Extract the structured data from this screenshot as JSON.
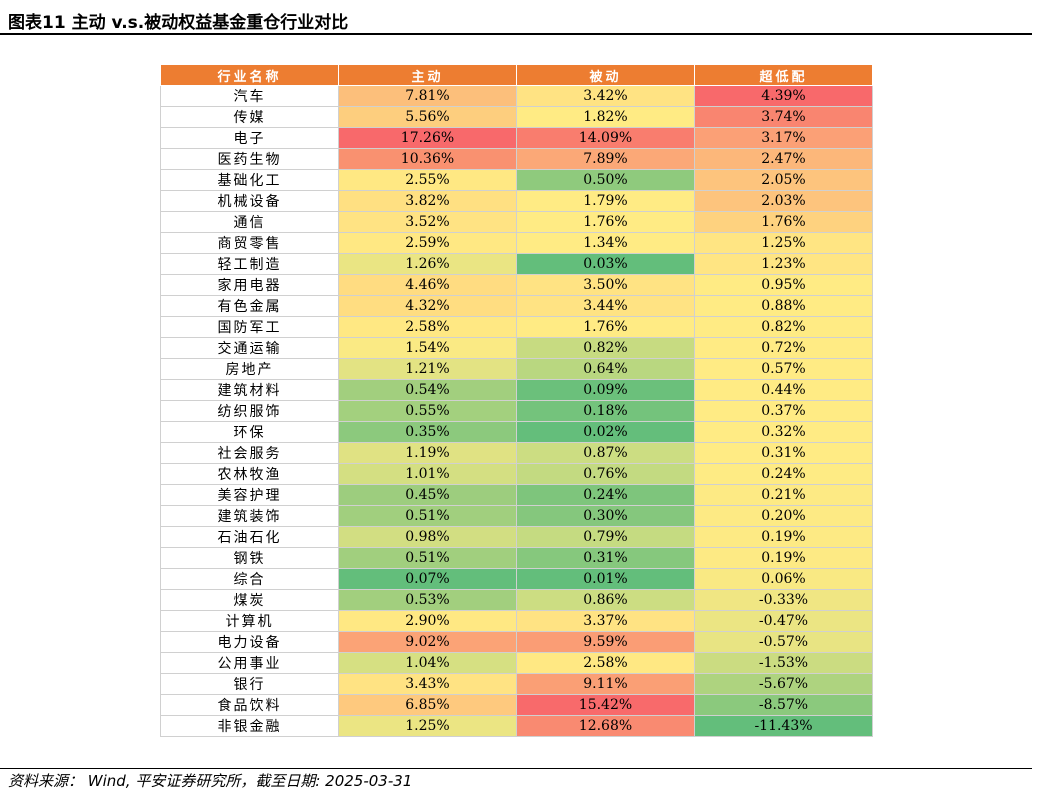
{
  "title": "图表11   主动 v.s.被动权益基金重仓行业对比",
  "headers": [
    "行业名称",
    "主动",
    "被动",
    "超低配"
  ],
  "rows": [
    [
      "汽车",
      "7.81%",
      "3.42%",
      "4.39%"
    ],
    [
      "传媒",
      "5.56%",
      "1.82%",
      "3.74%"
    ],
    [
      "电子",
      "17.26%",
      "14.09%",
      "3.17%"
    ],
    [
      "医药生物",
      "10.36%",
      "7.89%",
      "2.47%"
    ],
    [
      "基础化工",
      "2.55%",
      "0.50%",
      "2.05%"
    ],
    [
      "机械设备",
      "3.82%",
      "1.79%",
      "2.03%"
    ],
    [
      "通信",
      "3.52%",
      "1.76%",
      "1.76%"
    ],
    [
      "商贸零售",
      "2.59%",
      "1.34%",
      "1.25%"
    ],
    [
      "轻工制造",
      "1.26%",
      "0.03%",
      "1.23%"
    ],
    [
      "家用电器",
      "4.46%",
      "3.50%",
      "0.95%"
    ],
    [
      "有色金属",
      "4.32%",
      "3.44%",
      "0.88%"
    ],
    [
      "国防军工",
      "2.58%",
      "1.76%",
      "0.82%"
    ],
    [
      "交通运输",
      "1.54%",
      "0.82%",
      "0.72%"
    ],
    [
      "房地产",
      "1.21%",
      "0.64%",
      "0.57%"
    ],
    [
      "建筑材料",
      "0.54%",
      "0.09%",
      "0.44%"
    ],
    [
      "纺织服饰",
      "0.55%",
      "0.18%",
      "0.37%"
    ],
    [
      "环保",
      "0.35%",
      "0.02%",
      "0.32%"
    ],
    [
      "社会服务",
      "1.19%",
      "0.87%",
      "0.31%"
    ],
    [
      "农林牧渔",
      "1.01%",
      "0.76%",
      "0.24%"
    ],
    [
      "美容护理",
      "0.45%",
      "0.24%",
      "0.21%"
    ],
    [
      "建筑装饰",
      "0.51%",
      "0.30%",
      "0.20%"
    ],
    [
      "石油石化",
      "0.98%",
      "0.79%",
      "0.19%"
    ],
    [
      "钢铁",
      "0.51%",
      "0.31%",
      "0.19%"
    ],
    [
      "综合",
      "0.07%",
      "0.01%",
      "0.06%"
    ],
    [
      "煤炭",
      "0.53%",
      "0.86%",
      "-0.33%"
    ],
    [
      "计算机",
      "2.90%",
      "3.37%",
      "-0.47%"
    ],
    [
      "电力设备",
      "9.02%",
      "9.59%",
      "-0.57%"
    ],
    [
      "公用事业",
      "1.04%",
      "2.58%",
      "-1.53%"
    ],
    [
      "银行",
      "3.43%",
      "9.11%",
      "-5.67%"
    ],
    [
      "食品饮料",
      "6.85%",
      "15.42%",
      "-8.57%"
    ],
    [
      "非银金融",
      "1.25%",
      "12.68%",
      "-11.43%"
    ]
  ],
  "cell_colors": [
    [
      "#FCBF7B",
      "#FFE383",
      "#F8696B"
    ],
    [
      "#FDCE7E",
      "#FFEB84",
      "#F98570"
    ],
    [
      "#F8696B",
      "#F97D6E",
      "#FBA076"
    ],
    [
      "#F99170",
      "#FBA877",
      "#FCB77A"
    ],
    [
      "#FFE883",
      "#8FCA7D",
      "#FDC47D"
    ],
    [
      "#FFE082",
      "#FFEB84",
      "#FDC47D"
    ],
    [
      "#FFE383",
      "#FFEB84",
      "#FED27F"
    ],
    [
      "#FFE883",
      "#FFEB84",
      "#FFE583"
    ],
    [
      "#EAE583",
      "#63BE7B",
      "#FFE583"
    ],
    [
      "#FFDC81",
      "#FFE383",
      "#FFEB84"
    ],
    [
      "#FFDD81",
      "#FFE383",
      "#FFEB84"
    ],
    [
      "#FFE883",
      "#FFEB84",
      "#FFEB84"
    ],
    [
      "#FAEA84",
      "#C7DB81",
      "#FFEB84"
    ],
    [
      "#E3E383",
      "#B9D780",
      "#FFEB84"
    ],
    [
      "#A2CF7E",
      "#6BC07B",
      "#FFEB84"
    ],
    [
      "#A3D07E",
      "#74C37C",
      "#FFEB84"
    ],
    [
      "#8CC97D",
      "#64BE7B",
      "#FFEB84"
    ],
    [
      "#E0E283",
      "#CCDD82",
      "#FFEB84"
    ],
    [
      "#D4DF82",
      "#C3DA81",
      "#FEEB84"
    ],
    [
      "#9DCD7E",
      "#7EC57C",
      "#FDEA84"
    ],
    [
      "#A1CF7E",
      "#85C77D",
      "#FDEA84"
    ],
    [
      "#D2DE82",
      "#C5DB81",
      "#FDEA84"
    ],
    [
      "#A1CF7E",
      "#86C87D",
      "#FDEA84"
    ],
    [
      "#63BE7B",
      "#63BE7B",
      "#F9E983"
    ],
    [
      "#A2CF7E",
      "#CCDD82",
      "#F0E683"
    ],
    [
      "#FFE883",
      "#FFE383",
      "#EBE583"
    ],
    [
      "#FBA376",
      "#FA9D75",
      "#E8E483"
    ],
    [
      "#D6E082",
      "#FFE883",
      "#CBDC81"
    ],
    [
      "#FFE383",
      "#FA9F75",
      "#AED37F"
    ],
    [
      "#FEC97E",
      "#F86A6B",
      "#8BC97D"
    ],
    [
      "#EBE583",
      "#F98A71",
      "#63BE7B"
    ]
  ],
  "source": "资料来源： Wind, 平安证券研究所，截至日期: 2025-03-31"
}
